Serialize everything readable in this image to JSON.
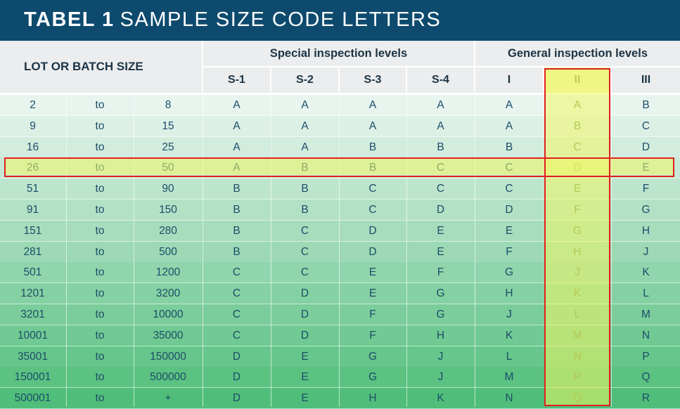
{
  "title": {
    "bold": "TABEL 1",
    "rest": "SAMPLE SIZE CODE LETTERS"
  },
  "header": {
    "lot_label": "LOT OR BATCH SIZE",
    "special_label": "Special inspection levels",
    "general_label": "General inspection levels",
    "columns": [
      "S-1",
      "S-2",
      "S-3",
      "S-4",
      "I",
      "II",
      "III"
    ]
  },
  "rows": [
    {
      "from": "2",
      "to": "to",
      "until": "8",
      "codes": [
        "A",
        "A",
        "A",
        "A",
        "A",
        "A",
        "B"
      ]
    },
    {
      "from": "9",
      "to": "to",
      "until": "15",
      "codes": [
        "A",
        "A",
        "A",
        "A",
        "A",
        "B",
        "C"
      ]
    },
    {
      "from": "16",
      "to": "to",
      "until": "25",
      "codes": [
        "A",
        "A",
        "B",
        "B",
        "B",
        "C",
        "D"
      ]
    },
    {
      "from": "26",
      "to": "to",
      "until": "50",
      "codes": [
        "A",
        "B",
        "B",
        "C",
        "C",
        "D",
        "E"
      ]
    },
    {
      "from": "51",
      "to": "to",
      "until": "90",
      "codes": [
        "B",
        "B",
        "C",
        "C",
        "C",
        "E",
        "F"
      ]
    },
    {
      "from": "91",
      "to": "to",
      "until": "150",
      "codes": [
        "B",
        "B",
        "C",
        "D",
        "D",
        "F",
        "G"
      ]
    },
    {
      "from": "151",
      "to": "to",
      "until": "280",
      "codes": [
        "B",
        "C",
        "D",
        "E",
        "E",
        "G",
        "H"
      ]
    },
    {
      "from": "281",
      "to": "to",
      "until": "500",
      "codes": [
        "B",
        "C",
        "D",
        "E",
        "F",
        "H",
        "J"
      ]
    },
    {
      "from": "501",
      "to": "to",
      "until": "1200",
      "codes": [
        "C",
        "C",
        "E",
        "F",
        "G",
        "J",
        "K"
      ]
    },
    {
      "from": "1201",
      "to": "to",
      "until": "3200",
      "codes": [
        "C",
        "D",
        "E",
        "G",
        "H",
        "K",
        "L"
      ]
    },
    {
      "from": "3201",
      "to": "to",
      "until": "10000",
      "codes": [
        "C",
        "D",
        "F",
        "G",
        "J",
        "L",
        "M"
      ]
    },
    {
      "from": "10001",
      "to": "to",
      "until": "35000",
      "codes": [
        "C",
        "D",
        "F",
        "H",
        "K",
        "M",
        "N"
      ]
    },
    {
      "from": "35001",
      "to": "to",
      "until": "150000",
      "codes": [
        "D",
        "E",
        "G",
        "J",
        "L",
        "N",
        "P"
      ]
    },
    {
      "from": "150001",
      "to": "to",
      "until": "500000",
      "codes": [
        "D",
        "E",
        "G",
        "J",
        "M",
        "P",
        "Q"
      ]
    },
    {
      "from": "500001",
      "to": "to",
      "until": "+",
      "codes": [
        "D",
        "E",
        "H",
        "K",
        "N",
        "Q",
        "R"
      ]
    }
  ],
  "highlight": {
    "row_from": "26",
    "column": "II",
    "outline_color": "#e02020"
  },
  "colors": {
    "title_bg": "#0d4a6e",
    "header_bg": "#ebedee",
    "row_gradient_start": "#e8f4ee",
    "row_gradient_end": "#4fbf7a",
    "text": "#1c4d6a"
  }
}
